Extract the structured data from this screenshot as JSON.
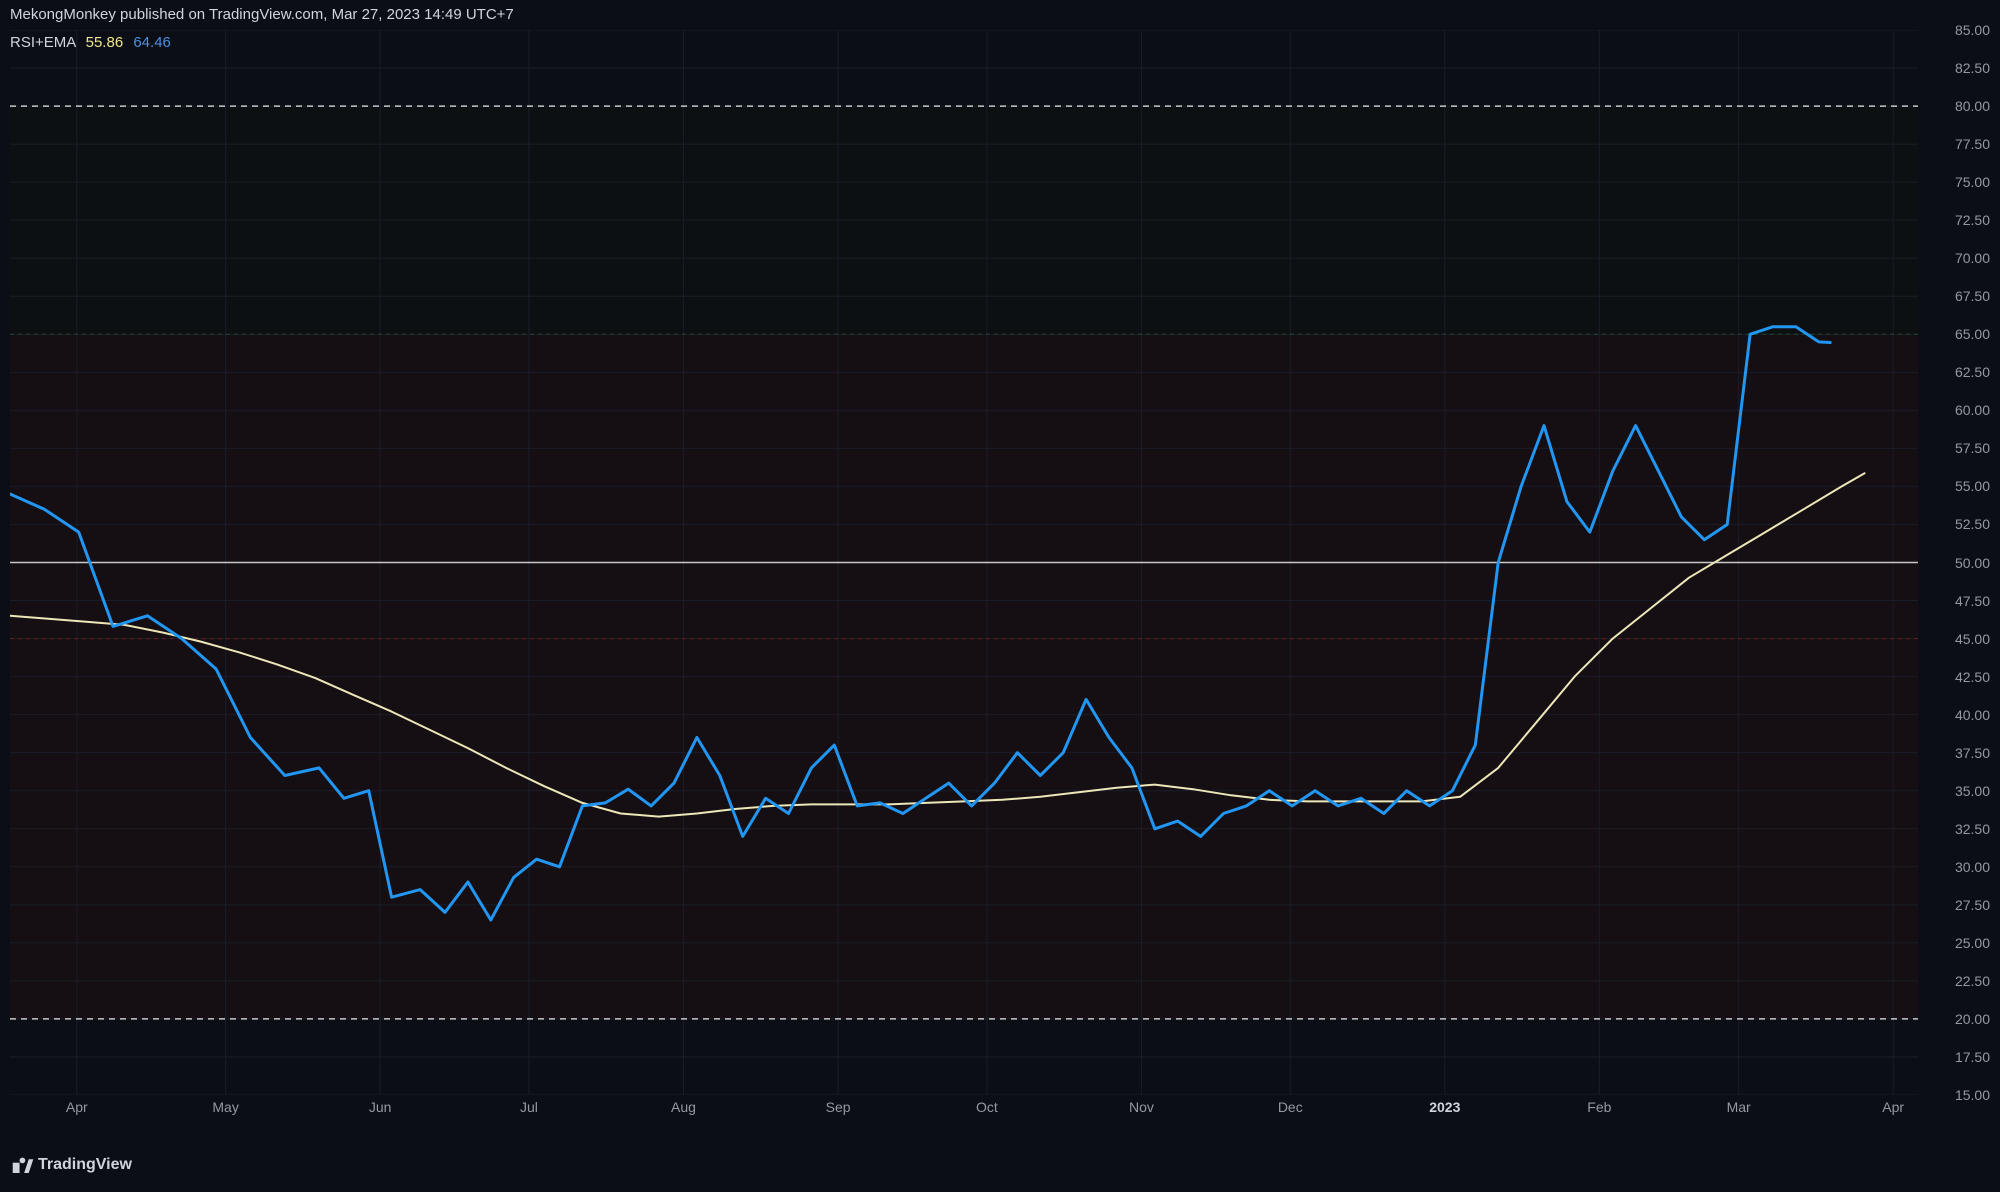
{
  "header": {
    "publish_text": "MekongMonkey published on TradingView.com, Mar 27, 2023 14:49 UTC+7"
  },
  "indicator": {
    "name": "RSI+EMA",
    "value1": "55.86",
    "value1_color": "#e8e0a0",
    "value2": "64.46",
    "value2_color": "#2196f3"
  },
  "footer": {
    "brand": "TradingView"
  },
  "chart": {
    "type": "line",
    "background_color": "#0c0e15",
    "zone_fill": "rgba(40,16,16,0.35)",
    "zone_alt_fill": "rgba(16,24,16,0.25)",
    "grid_color": "#1a1d29",
    "grid_width": 1,
    "ylim": [
      15,
      85
    ],
    "ytick_step": 2.5,
    "y_ticks": [
      85.0,
      82.5,
      80.0,
      77.5,
      75.0,
      72.5,
      70.0,
      67.5,
      65.0,
      62.5,
      60.0,
      57.5,
      55.0,
      52.5,
      50.0,
      47.5,
      45.0,
      42.5,
      40.0,
      37.5,
      35.0,
      32.5,
      30.0,
      27.5,
      25.0,
      22.5,
      20.0,
      17.5,
      15.0
    ],
    "x_ticks": [
      {
        "label": "Apr",
        "pos": 0.035,
        "highlight": false
      },
      {
        "label": "May",
        "pos": 0.113,
        "highlight": false
      },
      {
        "label": "Jun",
        "pos": 0.194,
        "highlight": false
      },
      {
        "label": "Jul",
        "pos": 0.272,
        "highlight": false
      },
      {
        "label": "Aug",
        "pos": 0.353,
        "highlight": false
      },
      {
        "label": "Sep",
        "pos": 0.434,
        "highlight": false
      },
      {
        "label": "Oct",
        "pos": 0.512,
        "highlight": false
      },
      {
        "label": "Nov",
        "pos": 0.593,
        "highlight": false
      },
      {
        "label": "Dec",
        "pos": 0.671,
        "highlight": false
      },
      {
        "label": "2023",
        "pos": 0.752,
        "highlight": true
      },
      {
        "label": "Feb",
        "pos": 0.833,
        "highlight": false
      },
      {
        "label": "Mar",
        "pos": 0.906,
        "highlight": false
      },
      {
        "label": "Apr",
        "pos": 0.987,
        "highlight": false
      }
    ],
    "h_lines": [
      {
        "y": 80,
        "color": "#c8c8c8",
        "dash": "6 5",
        "width": 1.5
      },
      {
        "y": 65,
        "color": "#1a4d2e",
        "dash": "4 4",
        "width": 1
      },
      {
        "y": 50,
        "color": "#c8c8c8",
        "dash": "",
        "width": 1.5
      },
      {
        "y": 45,
        "color": "#6b1a1a",
        "dash": "4 4",
        "width": 1
      },
      {
        "y": 20,
        "color": "#c8c8c8",
        "dash": "6 5",
        "width": 1.5
      }
    ],
    "series": [
      {
        "name": "ema",
        "color": "#ece6b8",
        "width": 2,
        "data": [
          [
            0.0,
            46.5
          ],
          [
            0.02,
            46.3
          ],
          [
            0.04,
            46.1
          ],
          [
            0.06,
            45.9
          ],
          [
            0.08,
            45.4
          ],
          [
            0.1,
            44.8
          ],
          [
            0.12,
            44.1
          ],
          [
            0.14,
            43.3
          ],
          [
            0.16,
            42.4
          ],
          [
            0.18,
            41.3
          ],
          [
            0.2,
            40.2
          ],
          [
            0.22,
            39.0
          ],
          [
            0.24,
            37.8
          ],
          [
            0.26,
            36.5
          ],
          [
            0.28,
            35.3
          ],
          [
            0.3,
            34.2
          ],
          [
            0.32,
            33.5
          ],
          [
            0.34,
            33.3
          ],
          [
            0.36,
            33.5
          ],
          [
            0.38,
            33.8
          ],
          [
            0.4,
            34.0
          ],
          [
            0.42,
            34.1
          ],
          [
            0.44,
            34.1
          ],
          [
            0.46,
            34.1
          ],
          [
            0.48,
            34.2
          ],
          [
            0.5,
            34.3
          ],
          [
            0.52,
            34.4
          ],
          [
            0.54,
            34.6
          ],
          [
            0.56,
            34.9
          ],
          [
            0.58,
            35.2
          ],
          [
            0.6,
            35.4
          ],
          [
            0.62,
            35.1
          ],
          [
            0.64,
            34.7
          ],
          [
            0.66,
            34.4
          ],
          [
            0.68,
            34.3
          ],
          [
            0.7,
            34.3
          ],
          [
            0.72,
            34.3
          ],
          [
            0.74,
            34.3
          ],
          [
            0.76,
            34.6
          ],
          [
            0.78,
            36.5
          ],
          [
            0.8,
            39.5
          ],
          [
            0.82,
            42.5
          ],
          [
            0.84,
            45.0
          ],
          [
            0.86,
            47.0
          ],
          [
            0.88,
            49.0
          ],
          [
            0.9,
            50.5
          ],
          [
            0.92,
            52.0
          ],
          [
            0.94,
            53.5
          ],
          [
            0.96,
            55.0
          ],
          [
            0.972,
            55.86
          ]
        ]
      },
      {
        "name": "rsi",
        "color": "#2196f3",
        "width": 3,
        "data": [
          [
            0.0,
            54.5
          ],
          [
            0.018,
            53.5
          ],
          [
            0.036,
            52.0
          ],
          [
            0.054,
            45.8
          ],
          [
            0.072,
            46.5
          ],
          [
            0.09,
            45.0
          ],
          [
            0.108,
            43.0
          ],
          [
            0.126,
            38.5
          ],
          [
            0.144,
            36.0
          ],
          [
            0.162,
            36.5
          ],
          [
            0.175,
            34.5
          ],
          [
            0.188,
            35.0
          ],
          [
            0.2,
            28.0
          ],
          [
            0.215,
            28.5
          ],
          [
            0.228,
            27.0
          ],
          [
            0.24,
            29.0
          ],
          [
            0.252,
            26.5
          ],
          [
            0.264,
            29.3
          ],
          [
            0.276,
            30.5
          ],
          [
            0.288,
            30.0
          ],
          [
            0.3,
            34.0
          ],
          [
            0.312,
            34.2
          ],
          [
            0.324,
            35.1
          ],
          [
            0.336,
            34.0
          ],
          [
            0.348,
            35.5
          ],
          [
            0.36,
            38.5
          ],
          [
            0.372,
            36.0
          ],
          [
            0.384,
            32.0
          ],
          [
            0.396,
            34.5
          ],
          [
            0.408,
            33.5
          ],
          [
            0.42,
            36.5
          ],
          [
            0.432,
            38.0
          ],
          [
            0.444,
            34.0
          ],
          [
            0.456,
            34.2
          ],
          [
            0.468,
            33.5
          ],
          [
            0.48,
            34.5
          ],
          [
            0.492,
            35.5
          ],
          [
            0.504,
            34.0
          ],
          [
            0.516,
            35.5
          ],
          [
            0.528,
            37.5
          ],
          [
            0.54,
            36.0
          ],
          [
            0.552,
            37.5
          ],
          [
            0.564,
            41.0
          ],
          [
            0.576,
            38.5
          ],
          [
            0.588,
            36.5
          ],
          [
            0.6,
            32.5
          ],
          [
            0.612,
            33.0
          ],
          [
            0.624,
            32.0
          ],
          [
            0.636,
            33.5
          ],
          [
            0.648,
            34.0
          ],
          [
            0.66,
            35.0
          ],
          [
            0.672,
            34.0
          ],
          [
            0.684,
            35.0
          ],
          [
            0.696,
            34.0
          ],
          [
            0.708,
            34.5
          ],
          [
            0.72,
            33.5
          ],
          [
            0.732,
            35.0
          ],
          [
            0.744,
            34.0
          ],
          [
            0.756,
            35.0
          ],
          [
            0.768,
            38.0
          ],
          [
            0.78,
            50.0
          ],
          [
            0.792,
            55.0
          ],
          [
            0.804,
            59.0
          ],
          [
            0.816,
            54.0
          ],
          [
            0.828,
            52.0
          ],
          [
            0.84,
            56.0
          ],
          [
            0.852,
            59.0
          ],
          [
            0.864,
            56.0
          ],
          [
            0.876,
            53.0
          ],
          [
            0.888,
            51.5
          ],
          [
            0.9,
            52.5
          ],
          [
            0.912,
            65.0
          ],
          [
            0.924,
            65.5
          ],
          [
            0.936,
            65.5
          ],
          [
            0.948,
            64.5
          ],
          [
            0.954,
            64.46
          ]
        ]
      }
    ]
  }
}
